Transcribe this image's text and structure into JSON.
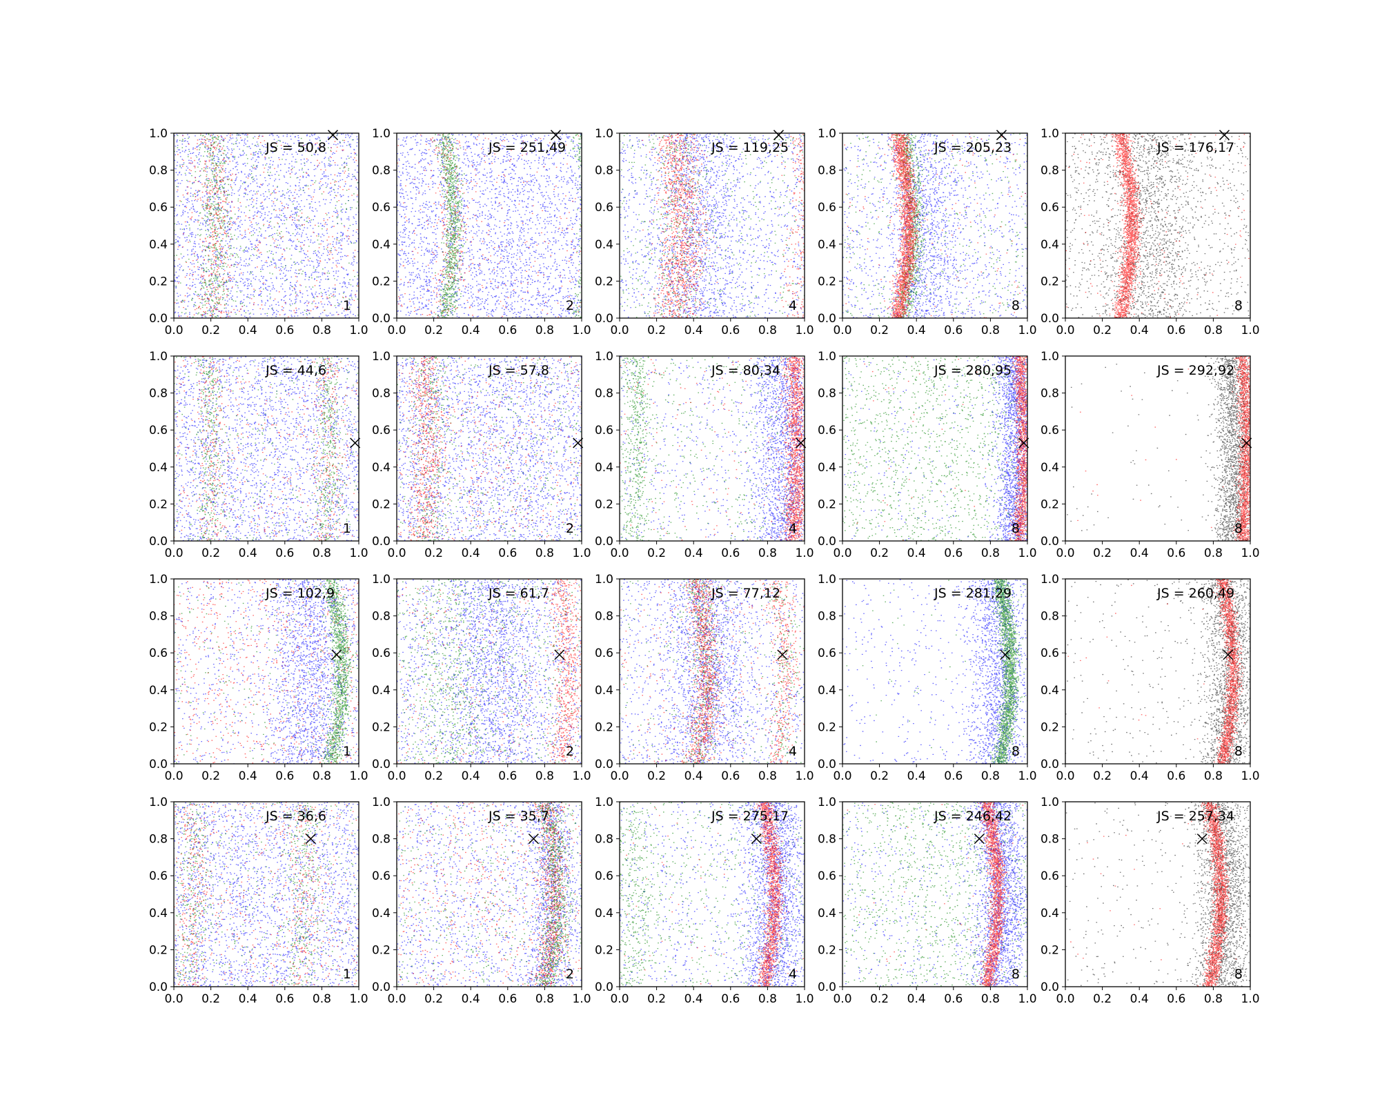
{
  "colors": {
    "blue": "#0000ff",
    "green": "#008000",
    "red": "#ff0000",
    "black": "#000000"
  },
  "chart_data": {
    "type": "scatter",
    "rows": 4,
    "cols": 5,
    "xlim": [
      0,
      1
    ],
    "ylim": [
      0,
      1
    ],
    "ticks": [
      0.0,
      0.2,
      0.4,
      0.6,
      0.8,
      1.0
    ],
    "tick_labels": [
      "0.0",
      "0.2",
      "0.4",
      "0.6",
      "0.8",
      "1.0"
    ],
    "grid": false,
    "panels": [
      {
        "row": 0,
        "col": 0,
        "js_label": "JS = 50,8",
        "k_label": "1",
        "marker": [
          0.86,
          0.99
        ],
        "layers": [
          {
            "color": "blue",
            "n": 2200,
            "cfg": {
              "mode": "uniform"
            }
          },
          {
            "color": "green",
            "n": 900,
            "cfg": {
              "mode": "mix",
              "frac": 0.55,
              "c0": 0.2,
              "a": 0.03,
              "sd": 0.045
            }
          },
          {
            "color": "red",
            "n": 700,
            "cfg": {
              "mode": "mix",
              "frac": 0.5,
              "c0": 0.2,
              "a": 0.03,
              "sd": 0.05
            }
          }
        ]
      },
      {
        "row": 0,
        "col": 1,
        "js_label": "JS = 251,49",
        "k_label": "2",
        "marker": [
          0.86,
          0.99
        ],
        "layers": [
          {
            "color": "blue",
            "n": 2600,
            "cfg": {
              "mode": "uniform"
            }
          },
          {
            "color": "red",
            "n": 500,
            "cfg": {
              "mode": "mix",
              "frac": 0.5,
              "c0": 0.25,
              "a": 0.05,
              "sd": 0.05
            }
          },
          {
            "color": "green",
            "n": 1500,
            "cfg": {
              "mode": "bands",
              "centers": [
                0.26,
                0.99
              ],
              "weights": [
                0.65,
                0.35
              ],
              "a": 0.05,
              "sd": 0.025
            }
          }
        ]
      },
      {
        "row": 0,
        "col": 2,
        "js_label": "JS = 119,25",
        "k_label": "4",
        "marker": [
          0.86,
          0.99
        ],
        "layers": [
          {
            "color": "blue",
            "n": 2200,
            "cfg": {
              "mode": "mix",
              "frac": 0.45,
              "c0": 0.42,
              "a": 0.02,
              "sd": 0.12
            }
          },
          {
            "color": "green",
            "n": 700,
            "cfg": {
              "mode": "mix",
              "frac": 0.4,
              "c0": 0.3,
              "a": 0.04,
              "sd": 0.07
            }
          },
          {
            "color": "red",
            "n": 1600,
            "cfg": {
              "mode": "bands",
              "centers": [
                0.3,
                0.99
              ],
              "weights": [
                0.75,
                0.25
              ],
              "a": 0.04,
              "sd": 0.06
            }
          }
        ]
      },
      {
        "row": 0,
        "col": 3,
        "js_label": "JS = 205,23",
        "k_label": "8",
        "marker": [
          0.86,
          0.99
        ],
        "layers": [
          {
            "color": "blue",
            "n": 2000,
            "cfg": {
              "mode": "mix",
              "frac": 0.5,
              "c0": 0.42,
              "a": 0.03,
              "sd": 0.1
            }
          },
          {
            "color": "green",
            "n": 1300,
            "cfg": {
              "mode": "mix",
              "frac": 0.7,
              "c0": 0.33,
              "a": 0.06,
              "sd": 0.028
            }
          },
          {
            "color": "red",
            "n": 2400,
            "cfg": {
              "mode": "mix",
              "frac": 0.95,
              "c0": 0.3,
              "a": 0.06,
              "sd": 0.022
            }
          }
        ]
      },
      {
        "row": 0,
        "col": 4,
        "js_label": "JS = 176,17",
        "k_label": "8",
        "marker": [
          0.86,
          0.99
        ],
        "layers": [
          {
            "color": "black",
            "n": 2200,
            "cfg": {
              "mode": "mix",
              "frac": 0.55,
              "c0": 0.42,
              "a": 0.03,
              "sd": 0.12
            }
          },
          {
            "color": "red",
            "n": 2300,
            "cfg": {
              "mode": "mix",
              "frac": 0.93,
              "c0": 0.3,
              "a": 0.06,
              "sd": 0.022
            }
          }
        ]
      },
      {
        "row": 1,
        "col": 0,
        "js_label": "JS = 44,6",
        "k_label": "1",
        "marker": [
          0.98,
          0.53
        ],
        "layers": [
          {
            "color": "blue",
            "n": 2300,
            "cfg": {
              "mode": "uniform"
            }
          },
          {
            "color": "green",
            "n": 1000,
            "cfg": {
              "mode": "bands",
              "centers": [
                0.18,
                0.82
              ],
              "weights": [
                0.5,
                0.5
              ],
              "a": 0.02,
              "sd": 0.035,
              "frac": 0.65
            }
          },
          {
            "color": "red",
            "n": 700,
            "cfg": {
              "mode": "bands",
              "centers": [
                0.18,
                0.82
              ],
              "weights": [
                0.5,
                0.5
              ],
              "a": 0.02,
              "sd": 0.04,
              "frac": 0.55
            }
          }
        ]
      },
      {
        "row": 1,
        "col": 1,
        "js_label": "JS = 57,8",
        "k_label": "2",
        "marker": [
          0.98,
          0.53
        ],
        "layers": [
          {
            "color": "blue",
            "n": 2500,
            "cfg": {
              "mode": "uniform"
            }
          },
          {
            "color": "green",
            "n": 700,
            "cfg": {
              "mode": "mix",
              "frac": 0.35,
              "c0": 0.18,
              "a": 0.03,
              "sd": 0.05
            }
          },
          {
            "color": "red",
            "n": 1000,
            "cfg": {
              "mode": "mix",
              "frac": 0.6,
              "c0": 0.14,
              "a": 0.03,
              "sd": 0.045
            }
          }
        ]
      },
      {
        "row": 1,
        "col": 2,
        "js_label": "JS = 80,34",
        "k_label": "4",
        "marker": [
          0.98,
          0.53
        ],
        "layers": [
          {
            "color": "blue",
            "n": 2200,
            "cfg": {
              "mode": "mix",
              "frac": 0.75,
              "c0": 0.88,
              "a": 0.02,
              "sd": 0.09
            }
          },
          {
            "color": "green",
            "n": 900,
            "cfg": {
              "mode": "mix",
              "frac": 0.55,
              "c0": 0.08,
              "a": 0.02,
              "sd": 0.04
            }
          },
          {
            "color": "red",
            "n": 1700,
            "cfg": {
              "mode": "mix",
              "frac": 0.92,
              "c0": 0.94,
              "a": 0.02,
              "sd": 0.03
            }
          }
        ]
      },
      {
        "row": 1,
        "col": 3,
        "js_label": "JS = 280,95",
        "k_label": "8",
        "marker": [
          0.98,
          0.53
        ],
        "layers": [
          {
            "color": "green",
            "n": 1300,
            "cfg": {
              "mode": "uniform"
            }
          },
          {
            "color": "blue",
            "n": 2000,
            "cfg": {
              "mode": "mix",
              "frac": 0.9,
              "c0": 0.92,
              "a": 0.02,
              "sd": 0.05
            }
          },
          {
            "color": "red",
            "n": 1600,
            "cfg": {
              "mode": "mix",
              "frac": 0.97,
              "c0": 0.96,
              "a": 0.02,
              "sd": 0.02
            }
          }
        ]
      },
      {
        "row": 1,
        "col": 4,
        "js_label": "JS = 292,92",
        "k_label": "8",
        "marker": [
          0.98,
          0.53
        ],
        "layers": [
          {
            "color": "black",
            "n": 2000,
            "cfg": {
              "mode": "mix",
              "frac": 0.97,
              "c0": 0.9,
              "a": 0.02,
              "sd": 0.05
            }
          },
          {
            "color": "red",
            "n": 1800,
            "cfg": {
              "mode": "mix",
              "frac": 0.99,
              "c0": 0.96,
              "a": 0.02,
              "sd": 0.02
            }
          }
        ]
      },
      {
        "row": 2,
        "col": 0,
        "js_label": "JS = 102,9",
        "k_label": "1",
        "marker": [
          0.88,
          0.59
        ],
        "layers": [
          {
            "color": "red",
            "n": 700,
            "cfg": {
              "mode": "uniform"
            }
          },
          {
            "color": "blue",
            "n": 2100,
            "cfg": {
              "mode": "mix",
              "frac": 0.65,
              "c0": 0.72,
              "a": 0.03,
              "sd": 0.1
            }
          },
          {
            "color": "green",
            "n": 1500,
            "cfg": {
              "mode": "mix",
              "frac": 0.85,
              "c0": 0.85,
              "a": 0.06,
              "sd": 0.025
            }
          }
        ]
      },
      {
        "row": 2,
        "col": 1,
        "js_label": "JS = 61,7",
        "k_label": "2",
        "marker": [
          0.88,
          0.59
        ],
        "layers": [
          {
            "color": "blue",
            "n": 2500,
            "cfg": {
              "mode": "mix",
              "frac": 0.5,
              "c0": 0.5,
              "a": 0.02,
              "sd": 0.13
            }
          },
          {
            "color": "green",
            "n": 1100,
            "cfg": {
              "mode": "mix",
              "frac": 0.4,
              "c0": 0.3,
              "a": 0.02,
              "sd": 0.1
            }
          },
          {
            "color": "red",
            "n": 900,
            "cfg": {
              "mode": "mix",
              "frac": 0.7,
              "c0": 0.88,
              "a": 0.05,
              "sd": 0.035
            }
          }
        ]
      },
      {
        "row": 2,
        "col": 2,
        "js_label": "JS = 77,12",
        "k_label": "4",
        "marker": [
          0.88,
          0.59
        ],
        "layers": [
          {
            "color": "blue",
            "n": 2400,
            "cfg": {
              "mode": "mix",
              "frac": 0.6,
              "c0": 0.45,
              "a": 0.03,
              "sd": 0.12
            }
          },
          {
            "color": "green",
            "n": 800,
            "cfg": {
              "mode": "bands",
              "centers": [
                0.42,
                0.85
              ],
              "weights": [
                0.7,
                0.3
              ],
              "a": 0.05,
              "sd": 0.04,
              "frac": 0.75
            }
          },
          {
            "color": "red",
            "n": 1600,
            "cfg": {
              "mode": "bands",
              "centers": [
                0.42,
                0.85
              ],
              "weights": [
                0.7,
                0.3
              ],
              "a": 0.05,
              "sd": 0.035,
              "frac": 0.85
            }
          }
        ]
      },
      {
        "row": 2,
        "col": 3,
        "js_label": "JS = 281,29",
        "k_label": "8",
        "marker": [
          0.88,
          0.59
        ],
        "layers": [
          {
            "color": "blue",
            "n": 1900,
            "cfg": {
              "mode": "mix",
              "frac": 0.8,
              "c0": 0.82,
              "a": 0.03,
              "sd": 0.08
            }
          },
          {
            "color": "green",
            "n": 2100,
            "cfg": {
              "mode": "mix",
              "frac": 0.98,
              "c0": 0.85,
              "a": 0.06,
              "sd": 0.022
            }
          }
        ]
      },
      {
        "row": 2,
        "col": 4,
        "js_label": "JS = 260,49",
        "k_label": "8",
        "marker": [
          0.88,
          0.59
        ],
        "layers": [
          {
            "color": "black",
            "n": 2100,
            "cfg": {
              "mode": "mix",
              "frac": 0.88,
              "c0": 0.86,
              "a": 0.04,
              "sd": 0.07
            }
          },
          {
            "color": "red",
            "n": 1900,
            "cfg": {
              "mode": "mix",
              "frac": 0.99,
              "c0": 0.85,
              "a": 0.06,
              "sd": 0.02
            }
          }
        ]
      },
      {
        "row": 3,
        "col": 0,
        "js_label": "JS = 36,6",
        "k_label": "1",
        "marker": [
          0.74,
          0.8
        ],
        "layers": [
          {
            "color": "blue",
            "n": 2300,
            "cfg": {
              "mode": "uniform"
            }
          },
          {
            "color": "green",
            "n": 900,
            "cfg": {
              "mode": "bands",
              "centers": [
                0.08,
                0.68
              ],
              "weights": [
                0.5,
                0.5
              ],
              "a": 0.03,
              "sd": 0.05,
              "frac": 0.6
            }
          },
          {
            "color": "red",
            "n": 800,
            "cfg": {
              "mode": "bands",
              "centers": [
                0.08,
                0.68
              ],
              "weights": [
                0.5,
                0.5
              ],
              "a": 0.03,
              "sd": 0.05,
              "frac": 0.5
            }
          }
        ]
      },
      {
        "row": 3,
        "col": 1,
        "js_label": "JS = 35,7",
        "k_label": "2",
        "marker": [
          0.74,
          0.8
        ],
        "layers": [
          {
            "color": "blue",
            "n": 2200,
            "cfg": {
              "mode": "mix",
              "frac": 0.4,
              "c0": 0.8,
              "a": 0.05,
              "sd": 0.06
            }
          },
          {
            "color": "red",
            "n": 1300,
            "cfg": {
              "mode": "mix",
              "frac": 0.6,
              "c0": 0.8,
              "a": 0.06,
              "sd": 0.035
            }
          },
          {
            "color": "green",
            "n": 1200,
            "cfg": {
              "mode": "mix",
              "frac": 0.65,
              "c0": 0.81,
              "a": 0.06,
              "sd": 0.035
            }
          }
        ]
      },
      {
        "row": 3,
        "col": 2,
        "js_label": "JS = 275,17",
        "k_label": "4",
        "marker": [
          0.74,
          0.8
        ],
        "layers": [
          {
            "color": "green",
            "n": 900,
            "cfg": {
              "mode": "mix",
              "frac": 0.3,
              "c0": 0.06,
              "a": 0.02,
              "sd": 0.05
            }
          },
          {
            "color": "blue",
            "n": 2400,
            "cfg": {
              "mode": "mix",
              "frac": 0.75,
              "c0": 0.8,
              "a": 0.05,
              "sd": 0.08
            }
          },
          {
            "color": "red",
            "n": 1700,
            "cfg": {
              "mode": "mix",
              "frac": 0.97,
              "c0": 0.78,
              "a": 0.06,
              "sd": 0.022
            }
          }
        ]
      },
      {
        "row": 3,
        "col": 3,
        "js_label": "JS = 246,42",
        "k_label": "8",
        "marker": [
          0.74,
          0.8
        ],
        "layers": [
          {
            "color": "green",
            "n": 1100,
            "cfg": {
              "mode": "mix",
              "frac": 0.3,
              "c0": 0.5,
              "a": 0.02,
              "sd": 0.2
            }
          },
          {
            "color": "blue",
            "n": 2300,
            "cfg": {
              "mode": "mix",
              "frac": 0.8,
              "c0": 0.82,
              "a": 0.05,
              "sd": 0.07
            }
          },
          {
            "color": "red",
            "n": 1900,
            "cfg": {
              "mode": "mix",
              "frac": 0.98,
              "c0": 0.78,
              "a": 0.06,
              "sd": 0.02
            }
          }
        ]
      },
      {
        "row": 3,
        "col": 4,
        "js_label": "JS = 257,34",
        "k_label": "8",
        "marker": [
          0.74,
          0.8
        ],
        "layers": [
          {
            "color": "black",
            "n": 2300,
            "cfg": {
              "mode": "mix",
              "frac": 0.88,
              "c0": 0.82,
              "a": 0.05,
              "sd": 0.07
            }
          },
          {
            "color": "red",
            "n": 2100,
            "cfg": {
              "mode": "mix",
              "frac": 0.99,
              "c0": 0.78,
              "a": 0.06,
              "sd": 0.02
            }
          }
        ]
      }
    ]
  }
}
